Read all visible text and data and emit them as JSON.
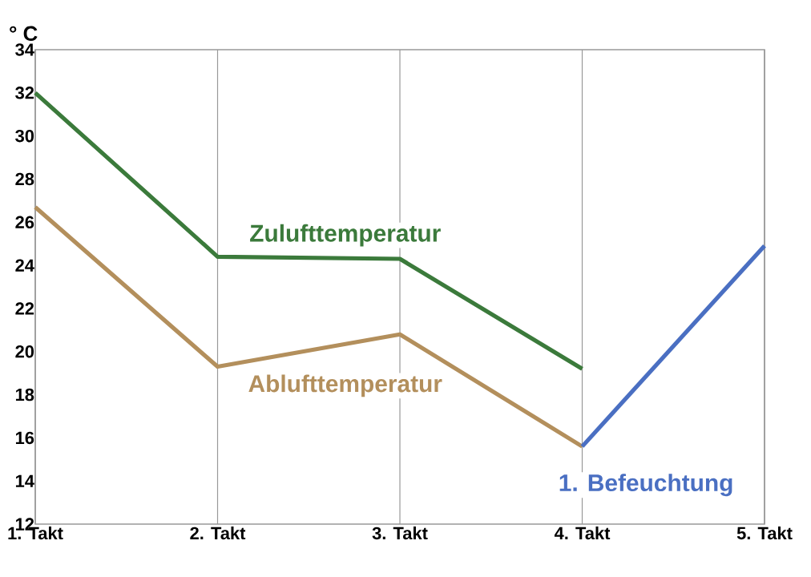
{
  "chart_data": {
    "type": "line",
    "ylabel": "° C",
    "categories": [
      "1. Takt",
      "2. Takt",
      "3. Takt",
      "4. Takt",
      "5. Takt"
    ],
    "series": [
      {
        "name": "Zulufttemperatur",
        "color": "#3b7a3b",
        "values": [
          32,
          24.4,
          24.3,
          19.2,
          null
        ]
      },
      {
        "name": "Ablufttemperatur",
        "color": "#b38f5c",
        "values": [
          26.7,
          19.3,
          20.8,
          15.6,
          null
        ]
      },
      {
        "name": "1. Befeuchtung",
        "color": "#4a6fc2",
        "values": [
          null,
          null,
          null,
          15.6,
          24.9
        ]
      }
    ],
    "ylim": [
      12,
      34
    ],
    "yticks": [
      12,
      14,
      16,
      18,
      20,
      22,
      24,
      26,
      28,
      30,
      32,
      34
    ],
    "grid": "x",
    "marker": "none",
    "line_style": "solid"
  }
}
